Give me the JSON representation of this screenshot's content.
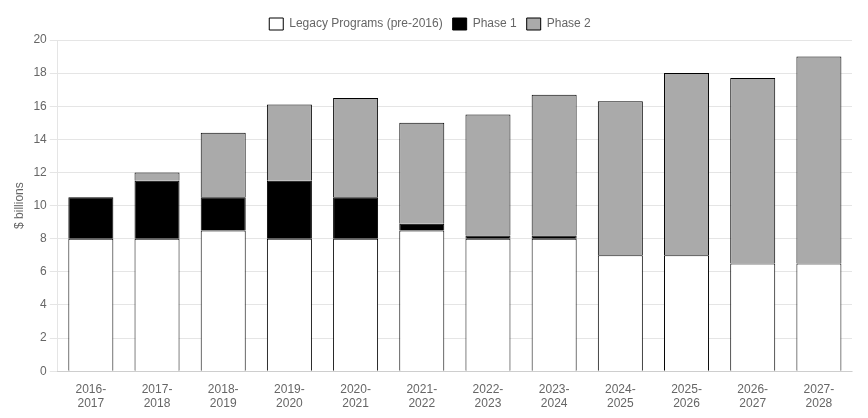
{
  "chart_data": {
    "type": "bar",
    "stacked": true,
    "ylabel": "$ billions",
    "categories": [
      "2016-\n2017",
      "2017-\n2018",
      "2018-\n2019",
      "2019-\n2020",
      "2020-\n2021",
      "2021-\n2022",
      "2022-\n2023",
      "2023-\n2024",
      "2024-\n2025",
      "2025-\n2026",
      "2026-\n2027",
      "2027-\n2028"
    ],
    "series": [
      {
        "name": "Legacy Programs (pre-2016)",
        "color": "#ffffff",
        "values": [
          8.0,
          8.0,
          8.5,
          8.0,
          8.0,
          8.5,
          8.0,
          8.0,
          7.0,
          7.0,
          6.5,
          6.5
        ]
      },
      {
        "name": "Phase 1",
        "color": "#000000",
        "values": [
          2.5,
          3.5,
          2.0,
          3.5,
          2.5,
          0.4,
          0.2,
          0.2,
          0.0,
          0.0,
          0.0,
          0.0
        ]
      },
      {
        "name": "Phase 2",
        "color": "#aaaaaa",
        "values": [
          0.0,
          0.5,
          3.9,
          4.6,
          6.0,
          6.1,
          7.3,
          8.5,
          9.3,
          11.0,
          11.2,
          12.5
        ]
      }
    ],
    "ylim": [
      0,
      20
    ],
    "yticks": [
      0,
      2,
      4,
      6,
      8,
      10,
      12,
      14,
      16,
      18,
      20
    ],
    "grid": true,
    "legend": "top"
  }
}
